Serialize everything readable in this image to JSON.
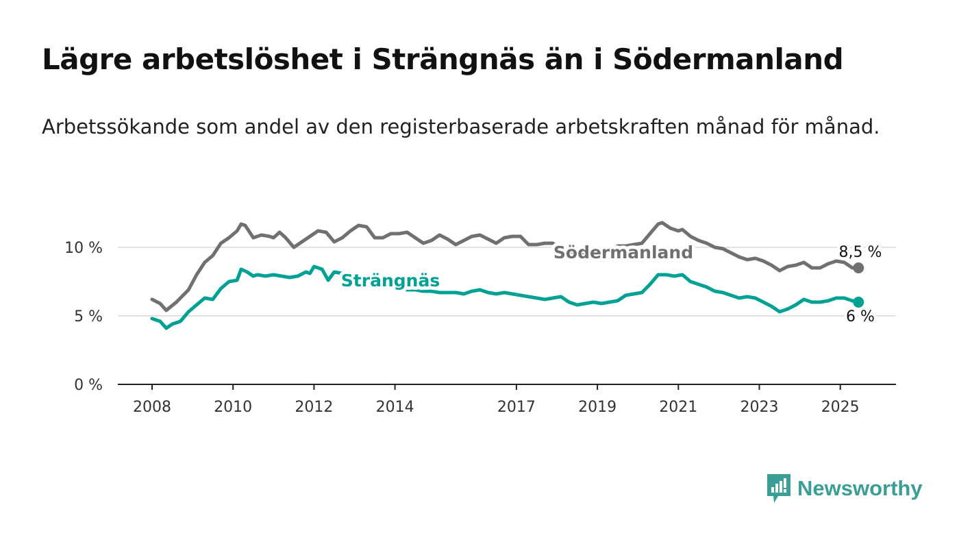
{
  "title": "Lägre arbetslöshet i Strängnäs än i Södermanland",
  "subtitle": "Arbetssökande som andel av den registerbaserade arbetskraften månad för månad.",
  "brand": "Newsworthy",
  "colors": {
    "sodermanland": "#707070",
    "strangnas": "#00a195",
    "grid": "#d9d9d9",
    "axis": "#222222",
    "brand": "#3a9e96"
  },
  "chart_data": {
    "type": "line",
    "ylim": [
      0,
      12
    ],
    "xlim": [
      2008,
      2025.5
    ],
    "grid": true,
    "x_ticks": [
      2008,
      2010,
      2012,
      2014,
      2017,
      2019,
      2021,
      2023,
      2025
    ],
    "x_tick_labels": [
      "2008",
      "2010",
      "2012",
      "2014",
      "2017",
      "2019",
      "2021",
      "2023",
      "2025"
    ],
    "y_ticks": [
      0,
      5,
      10
    ],
    "y_tick_labels": [
      "0 %",
      "5 %",
      "10 %"
    ],
    "series": [
      {
        "name": "Södermanland",
        "color": "#707070",
        "end_label": "8,5 %",
        "points": [
          [
            2008.0,
            6.2
          ],
          [
            2008.2,
            5.9
          ],
          [
            2008.35,
            5.4
          ],
          [
            2008.6,
            6.0
          ],
          [
            2008.9,
            6.9
          ],
          [
            2009.1,
            8.0
          ],
          [
            2009.3,
            8.9
          ],
          [
            2009.5,
            9.4
          ],
          [
            2009.7,
            10.3
          ],
          [
            2009.9,
            10.7
          ],
          [
            2010.1,
            11.2
          ],
          [
            2010.2,
            11.7
          ],
          [
            2010.3,
            11.6
          ],
          [
            2010.5,
            10.7
          ],
          [
            2010.7,
            10.9
          ],
          [
            2010.9,
            10.8
          ],
          [
            2011.0,
            10.7
          ],
          [
            2011.15,
            11.1
          ],
          [
            2011.3,
            10.7
          ],
          [
            2011.5,
            10.0
          ],
          [
            2011.7,
            10.4
          ],
          [
            2011.9,
            10.8
          ],
          [
            2012.1,
            11.2
          ],
          [
            2012.3,
            11.1
          ],
          [
            2012.5,
            10.4
          ],
          [
            2012.7,
            10.7
          ],
          [
            2012.9,
            11.2
          ],
          [
            2013.1,
            11.6
          ],
          [
            2013.3,
            11.5
          ],
          [
            2013.5,
            10.7
          ],
          [
            2013.7,
            10.7
          ],
          [
            2013.9,
            11.0
          ],
          [
            2014.1,
            11.0
          ],
          [
            2014.3,
            11.1
          ],
          [
            2014.5,
            10.7
          ],
          [
            2014.7,
            10.3
          ],
          [
            2014.9,
            10.5
          ],
          [
            2015.1,
            10.9
          ],
          [
            2015.3,
            10.6
          ],
          [
            2015.5,
            10.2
          ],
          [
            2015.7,
            10.5
          ],
          [
            2015.9,
            10.8
          ],
          [
            2016.1,
            10.9
          ],
          [
            2016.3,
            10.6
          ],
          [
            2016.5,
            10.3
          ],
          [
            2016.7,
            10.7
          ],
          [
            2016.9,
            10.8
          ],
          [
            2017.1,
            10.8
          ],
          [
            2017.3,
            10.2
          ],
          [
            2017.5,
            10.2
          ],
          [
            2017.7,
            10.3
          ],
          [
            2017.9,
            10.3
          ],
          [
            2018.1,
            9.8
          ],
          [
            2018.3,
            9.7
          ],
          [
            2018.5,
            9.6
          ],
          [
            2018.7,
            9.4
          ],
          [
            2018.9,
            9.2
          ],
          [
            2019.1,
            9.1
          ],
          [
            2019.3,
            9.6
          ],
          [
            2019.5,
            10.1
          ],
          [
            2019.7,
            10.1
          ],
          [
            2019.9,
            10.2
          ],
          [
            2020.1,
            10.3
          ],
          [
            2020.3,
            11.0
          ],
          [
            2020.5,
            11.7
          ],
          [
            2020.6,
            11.8
          ],
          [
            2020.8,
            11.4
          ],
          [
            2021.0,
            11.2
          ],
          [
            2021.1,
            11.3
          ],
          [
            2021.3,
            10.8
          ],
          [
            2021.5,
            10.5
          ],
          [
            2021.7,
            10.3
          ],
          [
            2021.9,
            10.0
          ],
          [
            2022.1,
            9.9
          ],
          [
            2022.3,
            9.6
          ],
          [
            2022.5,
            9.3
          ],
          [
            2022.7,
            9.1
          ],
          [
            2022.9,
            9.2
          ],
          [
            2023.1,
            9.0
          ],
          [
            2023.3,
            8.7
          ],
          [
            2023.5,
            8.3
          ],
          [
            2023.7,
            8.6
          ],
          [
            2023.9,
            8.7
          ],
          [
            2024.1,
            8.9
          ],
          [
            2024.3,
            8.5
          ],
          [
            2024.5,
            8.5
          ],
          [
            2024.7,
            8.8
          ],
          [
            2024.9,
            9.0
          ],
          [
            2025.1,
            8.9
          ],
          [
            2025.3,
            8.5
          ],
          [
            2025.45,
            8.5
          ]
        ]
      },
      {
        "name": "Strängnäs",
        "color": "#00a195",
        "end_label": "6 %",
        "points": [
          [
            2008.0,
            4.8
          ],
          [
            2008.2,
            4.6
          ],
          [
            2008.35,
            4.1
          ],
          [
            2008.5,
            4.4
          ],
          [
            2008.7,
            4.6
          ],
          [
            2008.9,
            5.3
          ],
          [
            2009.1,
            5.8
          ],
          [
            2009.3,
            6.3
          ],
          [
            2009.5,
            6.2
          ],
          [
            2009.7,
            7.0
          ],
          [
            2009.9,
            7.5
          ],
          [
            2010.1,
            7.6
          ],
          [
            2010.2,
            8.4
          ],
          [
            2010.35,
            8.2
          ],
          [
            2010.5,
            7.9
          ],
          [
            2010.6,
            8.0
          ],
          [
            2010.8,
            7.9
          ],
          [
            2011.0,
            8.0
          ],
          [
            2011.2,
            7.9
          ],
          [
            2011.4,
            7.8
          ],
          [
            2011.6,
            7.9
          ],
          [
            2011.8,
            8.2
          ],
          [
            2011.9,
            8.1
          ],
          [
            2012.0,
            8.6
          ],
          [
            2012.2,
            8.4
          ],
          [
            2012.35,
            7.6
          ],
          [
            2012.5,
            8.2
          ],
          [
            2012.7,
            8.1
          ],
          [
            2012.9,
            8.0
          ],
          [
            2013.1,
            7.9
          ],
          [
            2013.3,
            7.7
          ],
          [
            2013.5,
            7.5
          ],
          [
            2013.7,
            7.3
          ],
          [
            2013.9,
            7.1
          ],
          [
            2014.1,
            7.0
          ],
          [
            2014.3,
            6.9
          ],
          [
            2014.5,
            6.9
          ],
          [
            2014.7,
            6.8
          ],
          [
            2014.9,
            6.8
          ],
          [
            2015.1,
            6.7
          ],
          [
            2015.3,
            6.7
          ],
          [
            2015.5,
            6.7
          ],
          [
            2015.7,
            6.6
          ],
          [
            2015.9,
            6.8
          ],
          [
            2016.1,
            6.9
          ],
          [
            2016.3,
            6.7
          ],
          [
            2016.5,
            6.6
          ],
          [
            2016.7,
            6.7
          ],
          [
            2016.9,
            6.6
          ],
          [
            2017.1,
            6.5
          ],
          [
            2017.3,
            6.4
          ],
          [
            2017.5,
            6.3
          ],
          [
            2017.7,
            6.2
          ],
          [
            2017.9,
            6.3
          ],
          [
            2018.1,
            6.4
          ],
          [
            2018.3,
            6.0
          ],
          [
            2018.5,
            5.8
          ],
          [
            2018.7,
            5.9
          ],
          [
            2018.9,
            6.0
          ],
          [
            2019.1,
            5.9
          ],
          [
            2019.3,
            6.0
          ],
          [
            2019.5,
            6.1
          ],
          [
            2019.7,
            6.5
          ],
          [
            2019.9,
            6.6
          ],
          [
            2020.1,
            6.7
          ],
          [
            2020.3,
            7.3
          ],
          [
            2020.5,
            8.0
          ],
          [
            2020.7,
            8.0
          ],
          [
            2020.9,
            7.9
          ],
          [
            2021.1,
            8.0
          ],
          [
            2021.3,
            7.5
          ],
          [
            2021.5,
            7.3
          ],
          [
            2021.7,
            7.1
          ],
          [
            2021.9,
            6.8
          ],
          [
            2022.1,
            6.7
          ],
          [
            2022.3,
            6.5
          ],
          [
            2022.5,
            6.3
          ],
          [
            2022.7,
            6.4
          ],
          [
            2022.9,
            6.3
          ],
          [
            2023.1,
            6.0
          ],
          [
            2023.3,
            5.7
          ],
          [
            2023.5,
            5.3
          ],
          [
            2023.7,
            5.5
          ],
          [
            2023.9,
            5.8
          ],
          [
            2024.1,
            6.2
          ],
          [
            2024.3,
            6.0
          ],
          [
            2024.5,
            6.0
          ],
          [
            2024.7,
            6.1
          ],
          [
            2024.9,
            6.3
          ],
          [
            2025.1,
            6.3
          ],
          [
            2025.3,
            6.1
          ],
          [
            2025.45,
            6.0
          ]
        ]
      }
    ]
  }
}
